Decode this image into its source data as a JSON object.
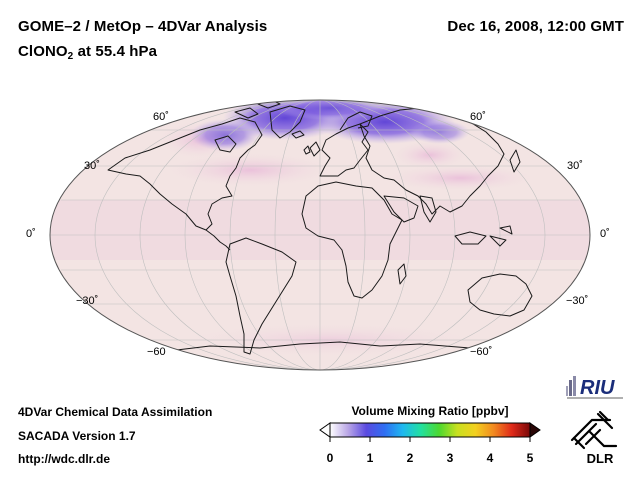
{
  "header": {
    "title": "GOME–2 / MetOp – 4DVar Analysis",
    "datetime": "Dec 16, 2008, 12:00 GMT",
    "species_prefix": "ClONO",
    "species_subscript": "2",
    "level": " at 55.4 hPa"
  },
  "map": {
    "projection": "Mollweide",
    "lat_labels_left": [
      "60˚",
      "30˚",
      "0˚",
      "−30˚",
      "−60"
    ],
    "lat_labels_right": [
      "60˚",
      "30˚",
      "0˚",
      "−30˚",
      "−60˚"
    ],
    "ocean_color": "#f3e4e3",
    "depletion_color": "#6a4ad8"
  },
  "footer": {
    "line1": "4DVar Chemical Data Assimilation",
    "line2": "SACADA Version 1.7",
    "line3": "http://wdc.dlr.de"
  },
  "colorbar": {
    "title": "Volume Mixing Ratio [ppbv]",
    "ticks": [
      "0",
      "1",
      "2",
      "3",
      "4",
      "5"
    ],
    "range": [
      0,
      5
    ],
    "colors": [
      "#ffffff",
      "#b9a6e6",
      "#5a4ae0",
      "#2f6ef2",
      "#1fb8f0",
      "#22e0a0",
      "#4cd830",
      "#c8e020",
      "#f2d020",
      "#f28a20",
      "#e02a1a",
      "#7a0808"
    ]
  },
  "logos": {
    "riu": "RIU",
    "dlr": "DLR"
  }
}
